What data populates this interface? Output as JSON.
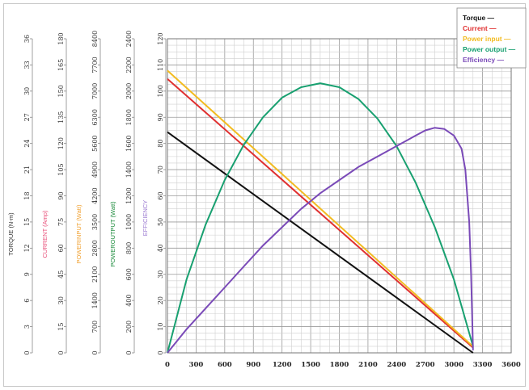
{
  "chart_data": {
    "type": "line",
    "xlabel": "",
    "xlim": [
      0,
      3600
    ],
    "x_ticks": [
      "0",
      "300",
      "600",
      "900",
      "1200",
      "1500",
      "1800",
      "2100",
      "2400",
      "2700",
      "3000",
      "3300",
      "3600"
    ],
    "grid": true,
    "legend_placement": "top-right",
    "y_axes": [
      {
        "key": "torque",
        "label": "TORQUE (N-m)",
        "color": "#333333",
        "ticks": [
          "0",
          "3",
          "6",
          "9",
          "12",
          "15",
          "18",
          "21",
          "24",
          "27",
          "30",
          "33",
          "36"
        ]
      },
      {
        "key": "current",
        "label": "CURRENT (Amp)",
        "color": "#e8507a",
        "ticks": [
          "0",
          "15",
          "30",
          "45",
          "60",
          "75",
          "90",
          "105",
          "120",
          "135",
          "150",
          "165",
          "180"
        ]
      },
      {
        "key": "power_input",
        "label": "POWERINPUT (Watt)",
        "color": "#f0a030",
        "ticks": [
          "0",
          "700",
          "1400",
          "2100",
          "2800",
          "3500",
          "4200",
          "4900",
          "5600",
          "6300",
          "7000",
          "7700",
          "8400"
        ]
      },
      {
        "key": "power_output",
        "label": "POWEROUTPUT (Watt)",
        "color": "#1a8a3a",
        "ticks": [
          "0",
          "200",
          "400",
          "600",
          "800",
          "1000",
          "1200",
          "1400",
          "1600",
          "1800",
          "2000",
          "2200",
          "2400"
        ]
      },
      {
        "key": "efficiency",
        "label": "EFFICIENCY",
        "color": "#9a78d0",
        "ticks": [
          "0",
          "10",
          "20",
          "30",
          "40",
          "50",
          "60",
          "70",
          "80",
          "90",
          "100",
          "110",
          "120"
        ]
      }
    ],
    "series": [
      {
        "name": "Torque",
        "color": "#111111",
        "axis": "torque",
        "points": [
          [
            0,
            25.3
          ],
          [
            3200,
            0
          ]
        ]
      },
      {
        "name": "Current",
        "color": "#e03030",
        "axis": "current",
        "points": [
          [
            0,
            157
          ],
          [
            3200,
            3
          ]
        ]
      },
      {
        "name": "Power input",
        "color": "#f2bb20",
        "axis": "power_input",
        "points": [
          [
            0,
            7550
          ],
          [
            3200,
            170
          ]
        ]
      },
      {
        "name": "Power output",
        "color": "#18a070",
        "axis": "power_output",
        "points": [
          [
            0,
            0
          ],
          [
            200,
            560
          ],
          [
            400,
            980
          ],
          [
            600,
            1320
          ],
          [
            800,
            1590
          ],
          [
            1000,
            1800
          ],
          [
            1200,
            1950
          ],
          [
            1400,
            2030
          ],
          [
            1600,
            2060
          ],
          [
            1800,
            2030
          ],
          [
            2000,
            1940
          ],
          [
            2200,
            1790
          ],
          [
            2400,
            1580
          ],
          [
            2600,
            1300
          ],
          [
            2800,
            960
          ],
          [
            3000,
            560
          ],
          [
            3200,
            50
          ]
        ]
      },
      {
        "name": "Efficiency",
        "color": "#7a4ab8",
        "axis": "efficiency",
        "points": [
          [
            0,
            0
          ],
          [
            200,
            9
          ],
          [
            400,
            17
          ],
          [
            600,
            25
          ],
          [
            800,
            33
          ],
          [
            1000,
            41
          ],
          [
            1200,
            48
          ],
          [
            1400,
            55
          ],
          [
            1600,
            61
          ],
          [
            1800,
            66
          ],
          [
            2000,
            71
          ],
          [
            2200,
            75
          ],
          [
            2400,
            79
          ],
          [
            2600,
            83
          ],
          [
            2700,
            85
          ],
          [
            2800,
            86
          ],
          [
            2900,
            85.5
          ],
          [
            3000,
            83
          ],
          [
            3080,
            78
          ],
          [
            3120,
            70
          ],
          [
            3160,
            50
          ],
          [
            3180,
            30
          ],
          [
            3200,
            1
          ]
        ]
      }
    ]
  }
}
